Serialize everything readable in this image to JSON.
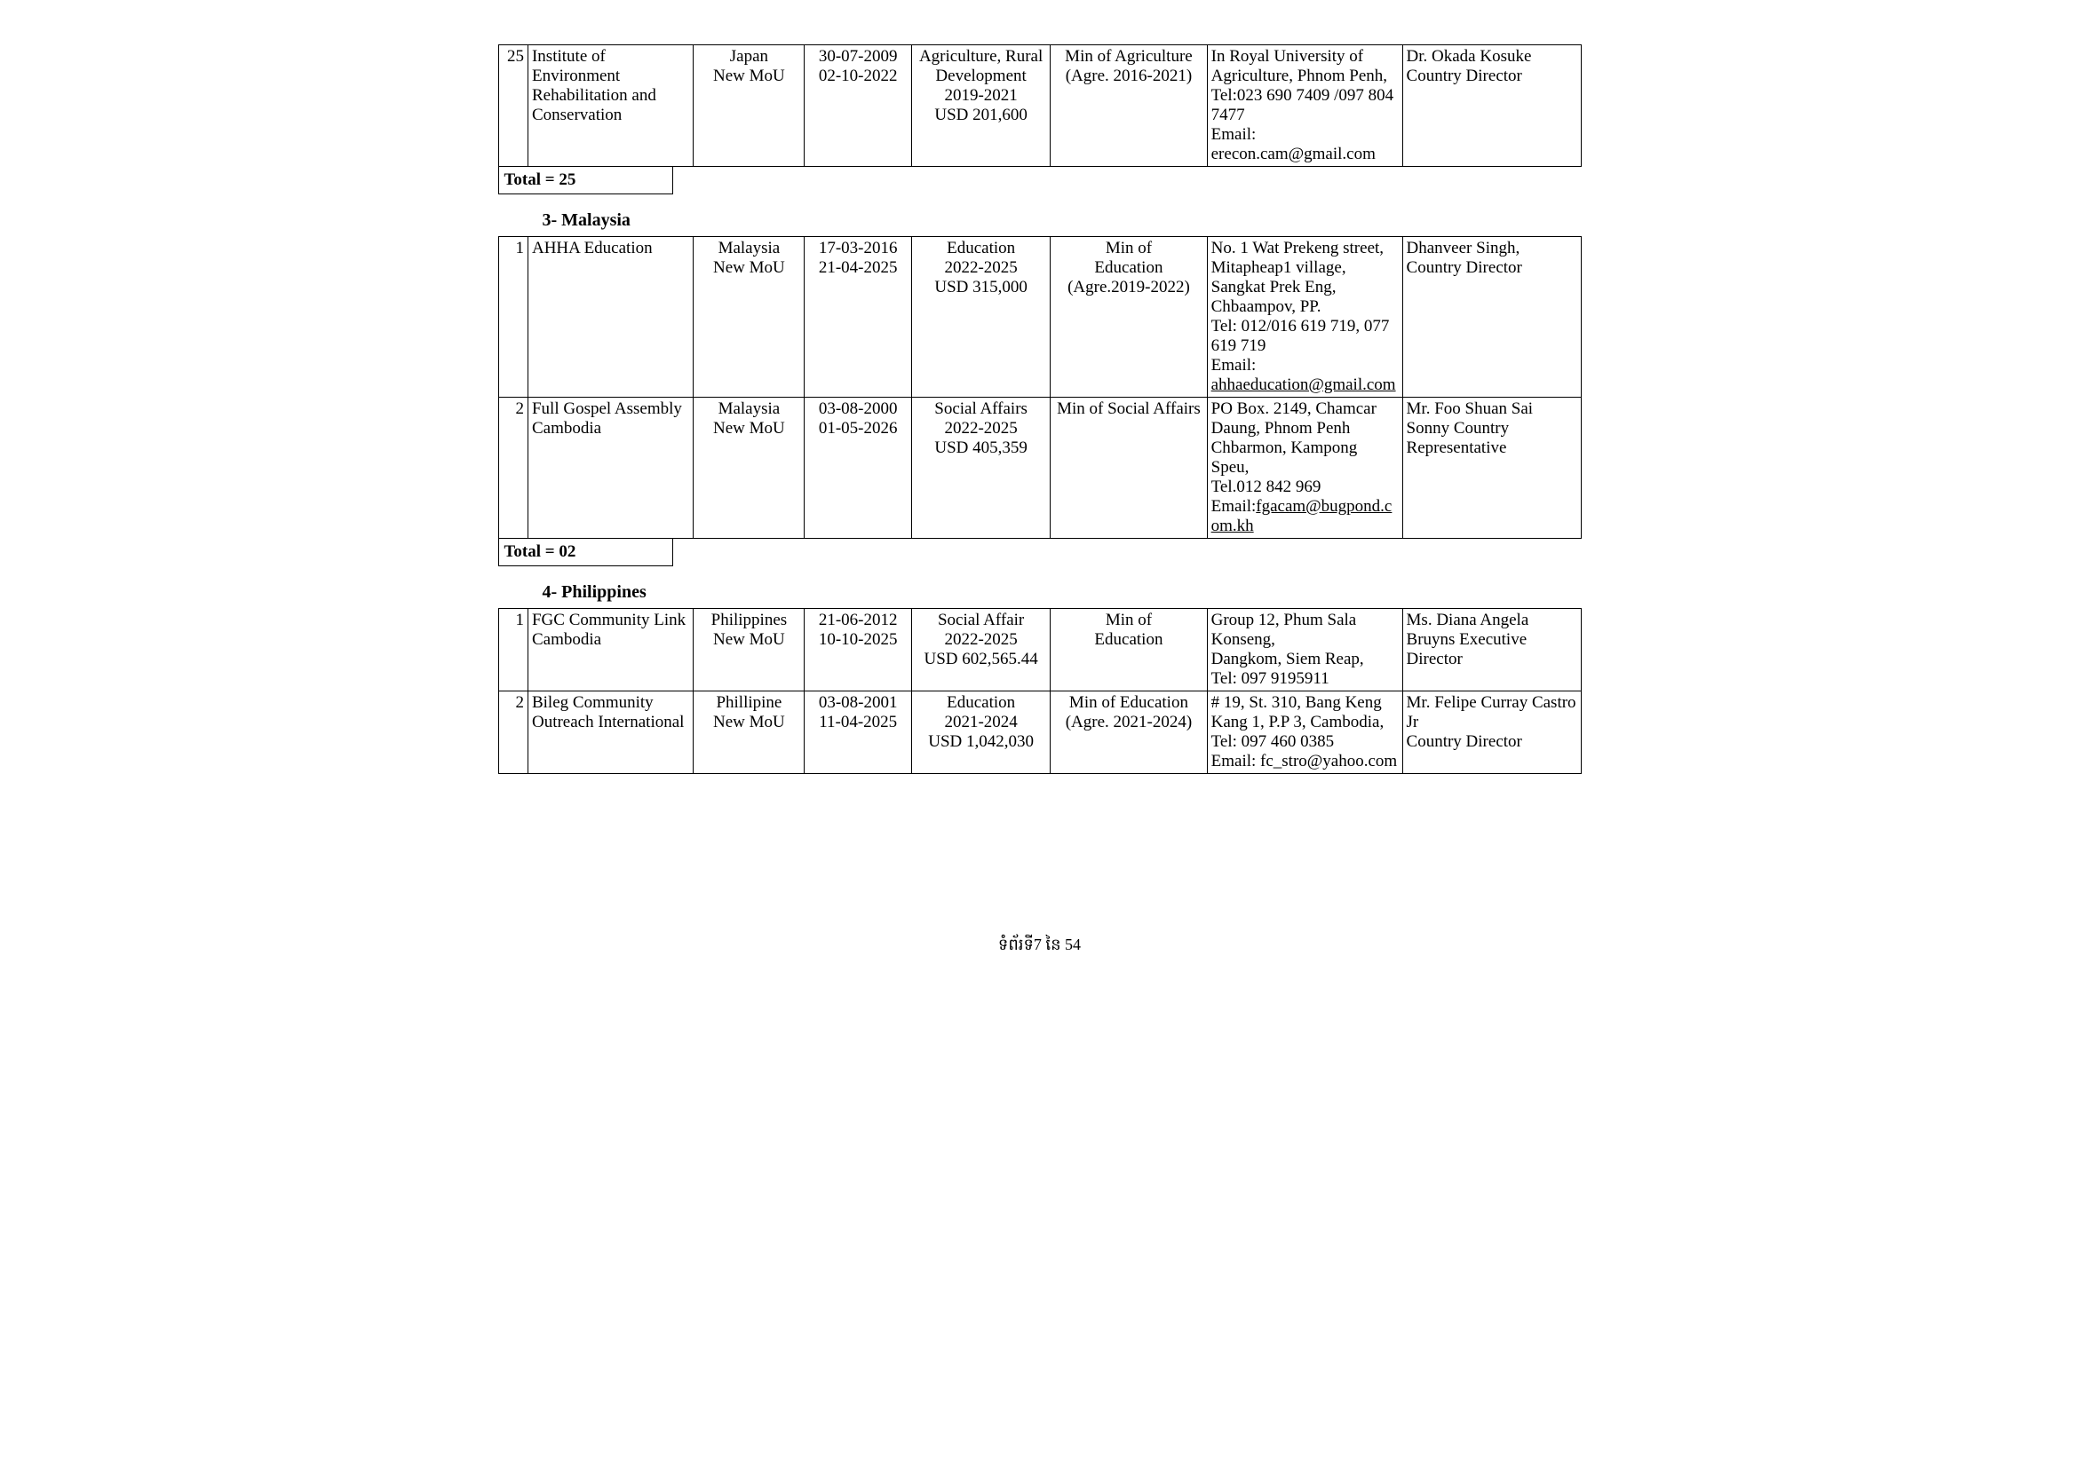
{
  "japan_tail": {
    "rows": [
      {
        "num": "25",
        "org": "Institute of Environment Rehabilitation and Conservation",
        "country": "Japan\nNew MoU",
        "dates": "30-07-2009\n02-10-2022",
        "sector": "Agriculture, Rural Development\n2019-2021\nUSD 201,600",
        "ministry": "Min of Agriculture\n(Agre. 2016-2021)",
        "address": " In Royal University of Agriculture, Phnom Penh, Tel:023 690 7409 /097 804 7477\nEmail: erecon.cam@gmail.com",
        "contact": "Dr. Okada Kosuke Country Director"
      }
    ],
    "total": "Total = 25"
  },
  "malaysia": {
    "heading": "3-  Malaysia",
    "rows": [
      {
        "num": "1",
        "org": "AHHA Education",
        "country": "Malaysia\nNew MoU",
        "dates": "17-03-2016\n21-04-2025",
        "sector": "Education\n2022-2025\nUSD 315,000",
        "ministry": "Min of\nEducation\n(Agre.2019-2022)",
        "address_pre": "No. 1 Wat Prekeng street, Mitapheap1 village, Sangkat Prek Eng, Chbaampov, PP.\nTel: 012/016 619 719, 077 619 719\nEmail: ",
        "address_email": "ahhaeducation@gmail.com",
        "contact": "Dhanveer Singh,\nCountry Director"
      },
      {
        "num": "2",
        "org": "Full Gospel Assembly Cambodia",
        "country": "Malaysia\nNew MoU",
        "dates": "03-08-2000\n01-05-2026",
        "sector": "Social Affairs\n2022-2025\nUSD 405,359",
        "ministry": "Min of Social Affairs",
        "address_pre": "PO Box. 2149, Chamcar Daung, Phnom Penh\nChbarmon, Kampong Speu,\nTel.012 842 969\nEmail:",
        "address_email": "fgacam@bugpond.com.kh",
        "contact": "Mr. Foo Shuan Sai Sonny Country Representative"
      }
    ],
    "total": "Total = 02"
  },
  "philippines": {
    "heading": "4-  Philippines",
    "rows": [
      {
        "num": "1",
        "org": "FGC Community Link Cambodia",
        "country": "Philippines\nNew MoU",
        "dates": "21-06-2012\n10-10-2025",
        "sector": "Social Affair\n2022-2025\nUSD 602,565.44",
        "ministry": "Min of\nEducation",
        "address": " Group 12, Phum Sala Konseng,\n Dangkom, Siem Reap,\n Tel: 097 9195911",
        "contact": "Ms. Diana Angela Bruyns Executive Director"
      },
      {
        "num": "2",
        "org": "Bileg Community Outreach International",
        "country": "Phillipine\nNew MoU",
        "dates": "03-08-2001\n11-04-2025",
        "sector": "Education\n2021-2024\nUSD 1,042,030",
        "ministry": "Min of Education\n(Agre. 2021-2024)",
        "address": "# 19, St. 310, Bang Keng Kang 1, P.P 3, Cambodia, Tel: 097 460 0385\nEmail: fc_stro@yahoo.com",
        "contact": "Mr. Felipe Curray Castro Jr\nCountry Director"
      }
    ]
  },
  "footer": "ទំព័រទី7 នៃ 54"
}
